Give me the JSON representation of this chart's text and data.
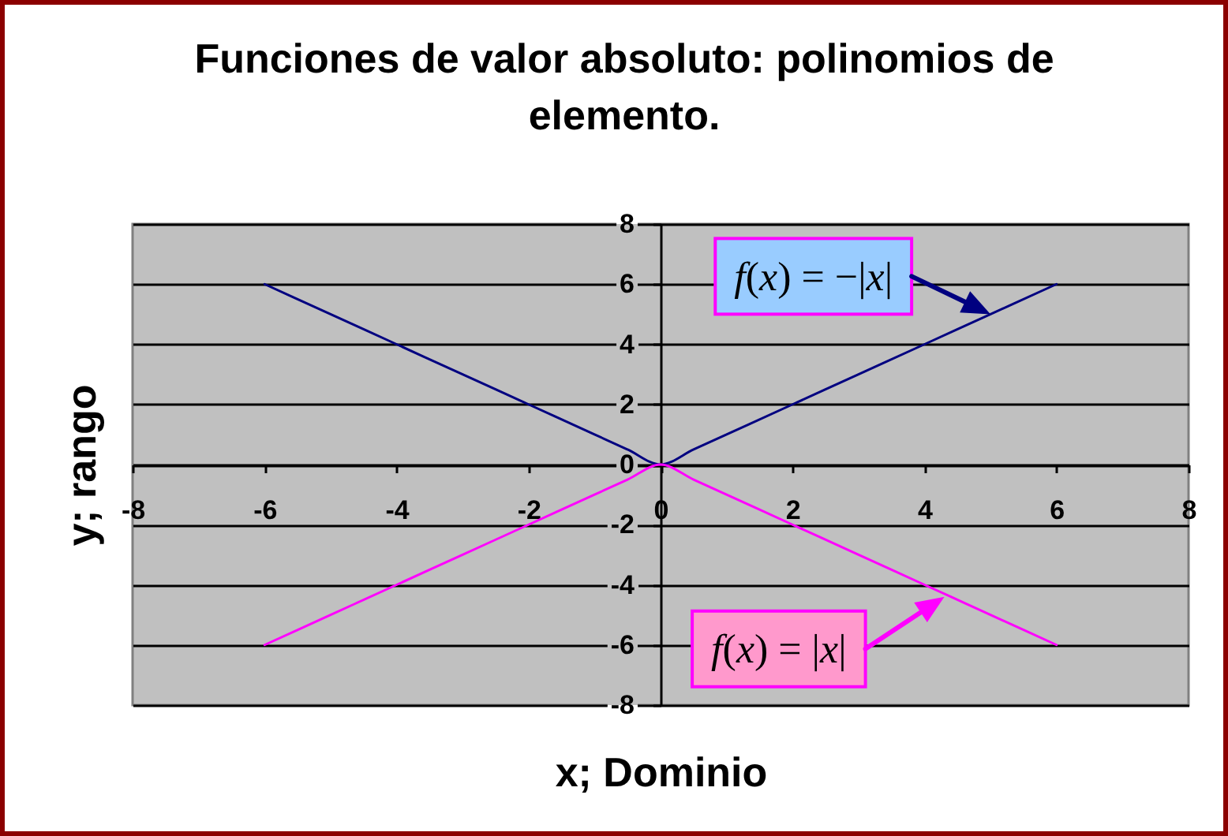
{
  "chart_data": {
    "type": "line",
    "title": "Funciones de valor absoluto: polinomios de elemento.",
    "xlabel": "x; Dominio",
    "ylabel": "y; rango",
    "x": [
      -6,
      -5,
      -4,
      -3,
      -2,
      -1,
      -0.5,
      0,
      0.5,
      1,
      2,
      3,
      4,
      5,
      6
    ],
    "series": [
      {
        "color": "#000080",
        "values": [
          6,
          5,
          4,
          3,
          2,
          1,
          0.5,
          0,
          0.5,
          1,
          2,
          3,
          4,
          5,
          6
        ]
      },
      {
        "color": "#ff00ff",
        "values": [
          -6,
          -5,
          -4,
          -3,
          -2,
          -1,
          -0.5,
          0,
          -0.5,
          -1,
          -2,
          -3,
          -4,
          -5,
          -6
        ]
      }
    ],
    "xlim": [
      -8,
      8
    ],
    "ylim": [
      -8,
      8
    ],
    "xticks": [
      -8,
      -6,
      -4,
      -2,
      0,
      2,
      4,
      6,
      8
    ],
    "yticks": [
      -8,
      -6,
      -4,
      -2,
      0,
      2,
      4,
      6,
      8
    ],
    "grid": "y",
    "marker": "none",
    "annotations": [
      {
        "text": "f(x) = −|x|",
        "x": 5,
        "y": 5
      },
      {
        "text": "f(x) = |x|",
        "x": 4.3,
        "y": -4.4
      }
    ]
  }
}
